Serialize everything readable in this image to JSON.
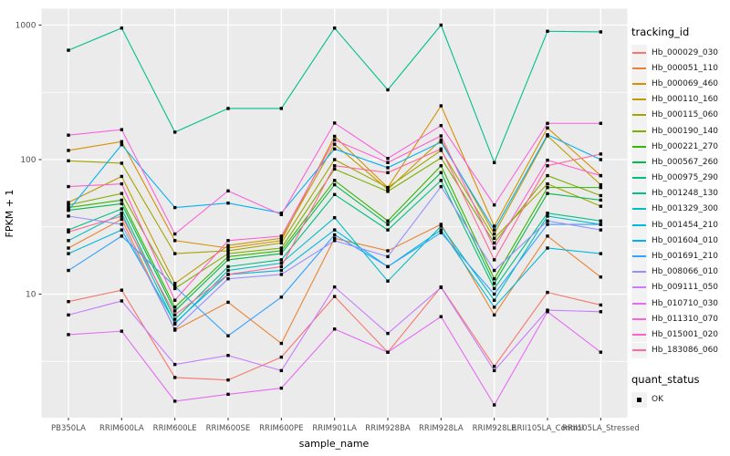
{
  "legend": {
    "tracking_title": "tracking_id",
    "quant_title": "quant_status",
    "quant_value": "OK"
  },
  "chart_data": {
    "type": "line",
    "title": "",
    "xlabel": "sample_name",
    "ylabel": "FPKM + 1",
    "y_scale": "log10",
    "ylim": [
      1.2,
      1350
    ],
    "y_ticks": [
      1000,
      100,
      10
    ],
    "y_minor": [
      316.2,
      31.62,
      3.162
    ],
    "grid": "on",
    "legend_position": "right",
    "panel_bg": "#EBEBEB",
    "grid_color": "#FFFFFF",
    "point_color": "#000000",
    "categories": [
      "PB350LA",
      "RRIM600LA",
      "RRIM600LE",
      "RRIM600SE",
      "RRIM600PE",
      "RRIM901LA",
      "RRIM928BA",
      "RRIM928LA",
      "RRIM928LE",
      "RRII105LA_Control",
      "RRII105LA_Stressed"
    ],
    "series": [
      {
        "name": "Hb_000029_030",
        "color": "#F8766D",
        "values": [
          8.8,
          10.7,
          2.4,
          2.3,
          3.4,
          9.6,
          3.7,
          11.3,
          2.9,
          10.3,
          8.3
        ]
      },
      {
        "name": "Hb_000051_110",
        "color": "#EA8331",
        "values": [
          22,
          36,
          5.4,
          8.7,
          4.3,
          26,
          21,
          33,
          7,
          27,
          13.4
        ]
      },
      {
        "name": "Hb_000069_460",
        "color": "#D89000",
        "values": [
          117,
          136,
          25,
          22,
          25,
          149,
          62,
          251,
          32,
          172,
          76
        ]
      },
      {
        "name": "Hb_000110_160",
        "color": "#C09B00",
        "values": [
          48,
          75,
          12,
          23,
          26,
          130,
          60,
          140,
          28,
          150,
          65
        ]
      },
      {
        "name": "Hb_000115_060",
        "color": "#A3A500",
        "values": [
          98,
          94,
          20,
          21,
          24,
          100,
          62,
          117,
          26,
          66,
          45
        ]
      },
      {
        "name": "Hb_000190_140",
        "color": "#7CAE00",
        "values": [
          46,
          56,
          11,
          20,
          22,
          85,
          58,
          103,
          24,
          76,
          54
        ]
      },
      {
        "name": "Hb_000221_270",
        "color": "#39B600",
        "values": [
          44,
          50,
          8,
          19,
          21,
          70,
          35,
          90,
          13,
          62,
          62
        ]
      },
      {
        "name": "Hb_000567_260",
        "color": "#00BB4E",
        "values": [
          42,
          47,
          7.5,
          18,
          20,
          65,
          33,
          80,
          12,
          56,
          50
        ]
      },
      {
        "name": "Hb_000975_290",
        "color": "#00BF7D",
        "values": [
          30,
          43,
          6.5,
          16,
          18,
          55,
          30,
          70,
          11,
          40,
          35
        ]
      },
      {
        "name": "Hb_001248_130",
        "color": "#00C08B",
        "values": [
          650,
          950,
          160,
          240,
          240,
          950,
          330,
          1000,
          95,
          900,
          890
        ]
      },
      {
        "name": "Hb_001329_300",
        "color": "#00BFC4",
        "values": [
          25,
          40,
          6,
          15,
          17,
          37,
          12.5,
          32,
          9,
          38,
          33
        ]
      },
      {
        "name": "Hb_001454_210",
        "color": "#00BADE",
        "values": [
          20,
          30,
          6.1,
          14,
          15,
          30,
          16,
          30,
          8,
          22,
          20
        ]
      },
      {
        "name": "Hb_001604_010",
        "color": "#00B0F6",
        "values": [
          42,
          129,
          44,
          47.5,
          40,
          120,
          87,
          135,
          30,
          153,
          100
        ]
      },
      {
        "name": "Hb_001691_210",
        "color": "#35A2FF",
        "values": [
          15,
          27,
          11.4,
          4.9,
          9.5,
          27.6,
          16,
          28.6,
          10,
          33,
          33
        ]
      },
      {
        "name": "Hb_008066_010",
        "color": "#9590FF",
        "values": [
          38,
          33,
          5.5,
          13,
          14,
          25,
          19,
          63,
          15,
          35,
          30
        ]
      },
      {
        "name": "Hb_009111_050",
        "color": "#C77CFF",
        "values": [
          7.0,
          8.9,
          3.0,
          3.5,
          2.7,
          11.3,
          5.1,
          11.2,
          2.7,
          7.6,
          7.4
        ]
      },
      {
        "name": "Hb_010710_030",
        "color": "#E76BF3",
        "values": [
          5.0,
          5.3,
          1.6,
          1.8,
          2.0,
          5.5,
          3.7,
          6.8,
          1.5,
          7.4,
          3.7
        ]
      },
      {
        "name": "Hb_011310_070",
        "color": "#FA62DB",
        "values": [
          152,
          167,
          28,
          58.5,
          39,
          187,
          102,
          179,
          46,
          186,
          186
        ]
      },
      {
        "name": "Hb_015001_020",
        "color": "#FF61CC",
        "values": [
          63,
          66,
          9,
          25,
          27,
          140,
          95,
          150,
          22,
          99,
          76
        ]
      },
      {
        "name": "Hb_183086_060",
        "color": "#FF6A98",
        "values": [
          29,
          38,
          7,
          14,
          16,
          90,
          80,
          120,
          18,
          90,
          110
        ]
      }
    ]
  }
}
